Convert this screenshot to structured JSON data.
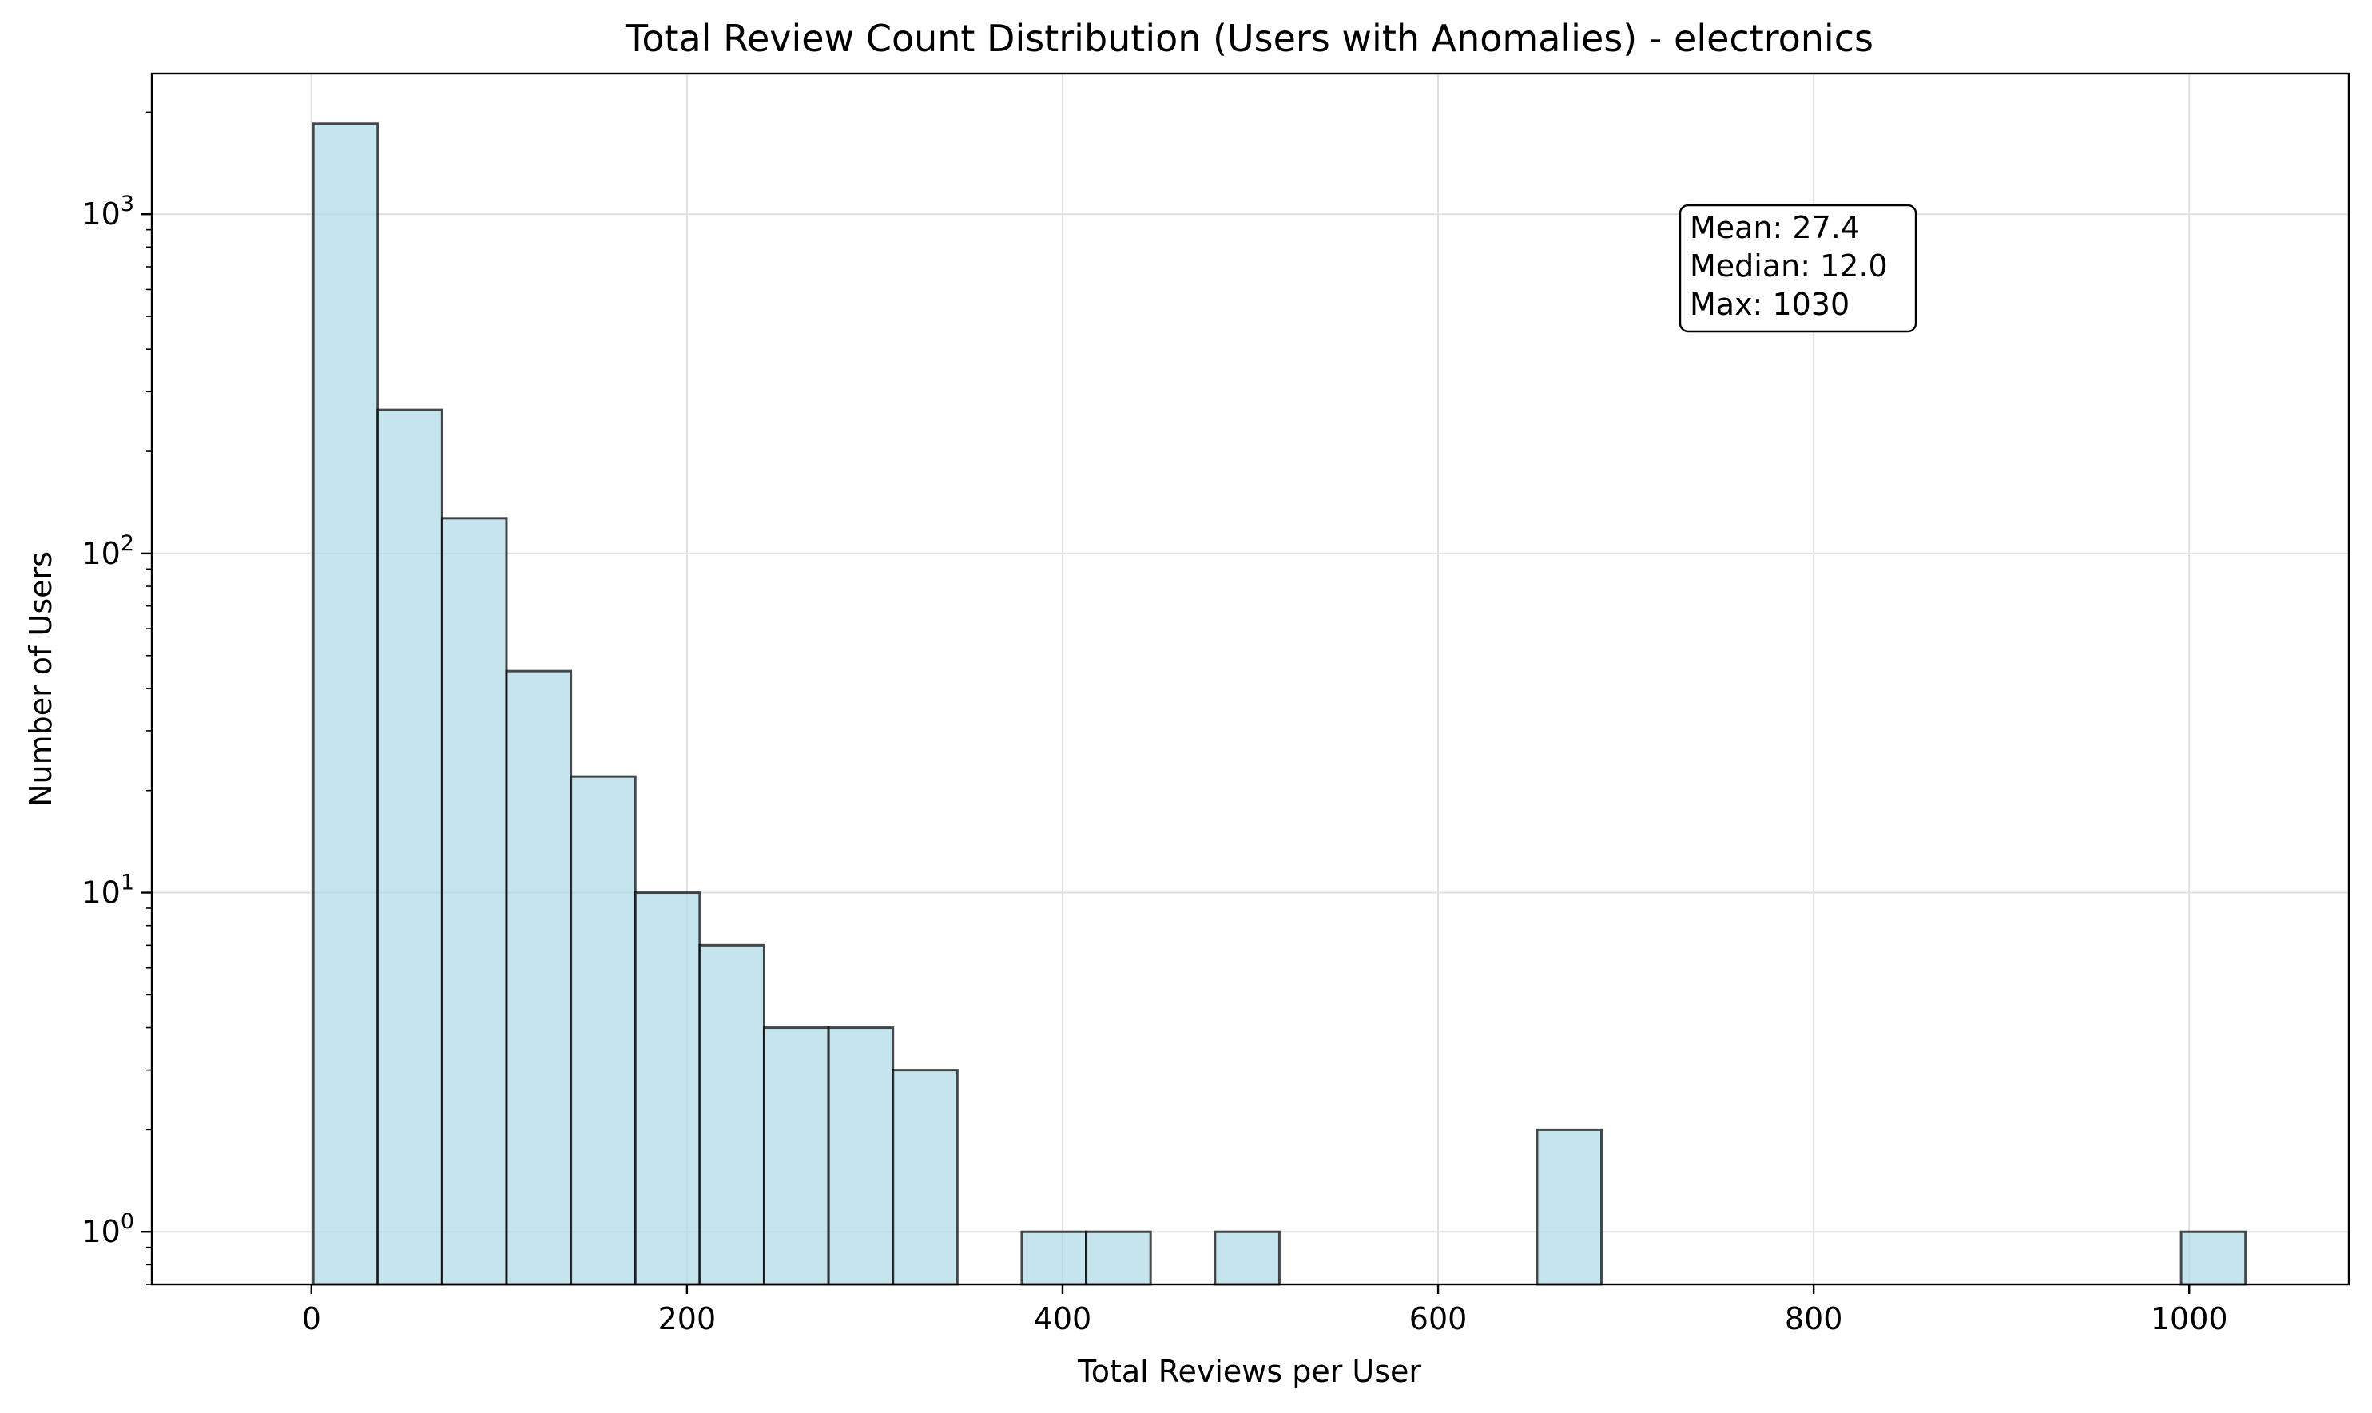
{
  "chart_data": {
    "type": "bar",
    "title": "Total Review Count Distribution (Users with Anomalies) - electronics",
    "xlabel": "Total Reviews per User",
    "ylabel": "Number of Users",
    "yscale": "log",
    "xlim": [
      -85,
      1085
    ],
    "ylim": [
      0.7,
      2600
    ],
    "bin_edges": [
      1,
      35.3,
      69.6,
      103.9,
      138.2,
      172.5,
      206.8,
      241.1,
      275.4,
      309.7,
      344.0,
      378.3,
      412.6,
      446.9,
      481.2,
      515.5,
      549.8,
      584.1,
      618.4,
      652.7,
      687.0,
      721.3,
      755.6,
      789.9,
      824.2,
      858.5,
      892.8,
      927.1,
      961.4,
      995.7,
      1030
    ],
    "values": [
      1850,
      265,
      127,
      45,
      22,
      10,
      7,
      4,
      4,
      3,
      0,
      1,
      1,
      0,
      1,
      0,
      0,
      0,
      0,
      2,
      0,
      0,
      0,
      0,
      0,
      0,
      0,
      0,
      0,
      1
    ],
    "x_ticks": [
      {
        "value": 0,
        "label": "0"
      },
      {
        "value": 200,
        "label": "200"
      },
      {
        "value": 400,
        "label": "400"
      },
      {
        "value": 600,
        "label": "600"
      },
      {
        "value": 800,
        "label": "800"
      },
      {
        "value": 1000,
        "label": "1000"
      }
    ],
    "y_ticks": [
      {
        "value": 1,
        "base": "10",
        "exp": "0"
      },
      {
        "value": 10,
        "base": "10",
        "exp": "1"
      },
      {
        "value": 100,
        "base": "10",
        "exp": "2"
      },
      {
        "value": 1000,
        "base": "10",
        "exp": "3"
      }
    ],
    "grid": true,
    "annotation": {
      "placement": "top-right",
      "lines": [
        "Mean: 27.4",
        "Median: 12.0",
        "Max: 1030"
      ]
    },
    "colors": {
      "bar_fill": "#add8e6",
      "bar_stroke": "#000000",
      "grid": "#e0e0e0",
      "axis": "#000000"
    }
  }
}
